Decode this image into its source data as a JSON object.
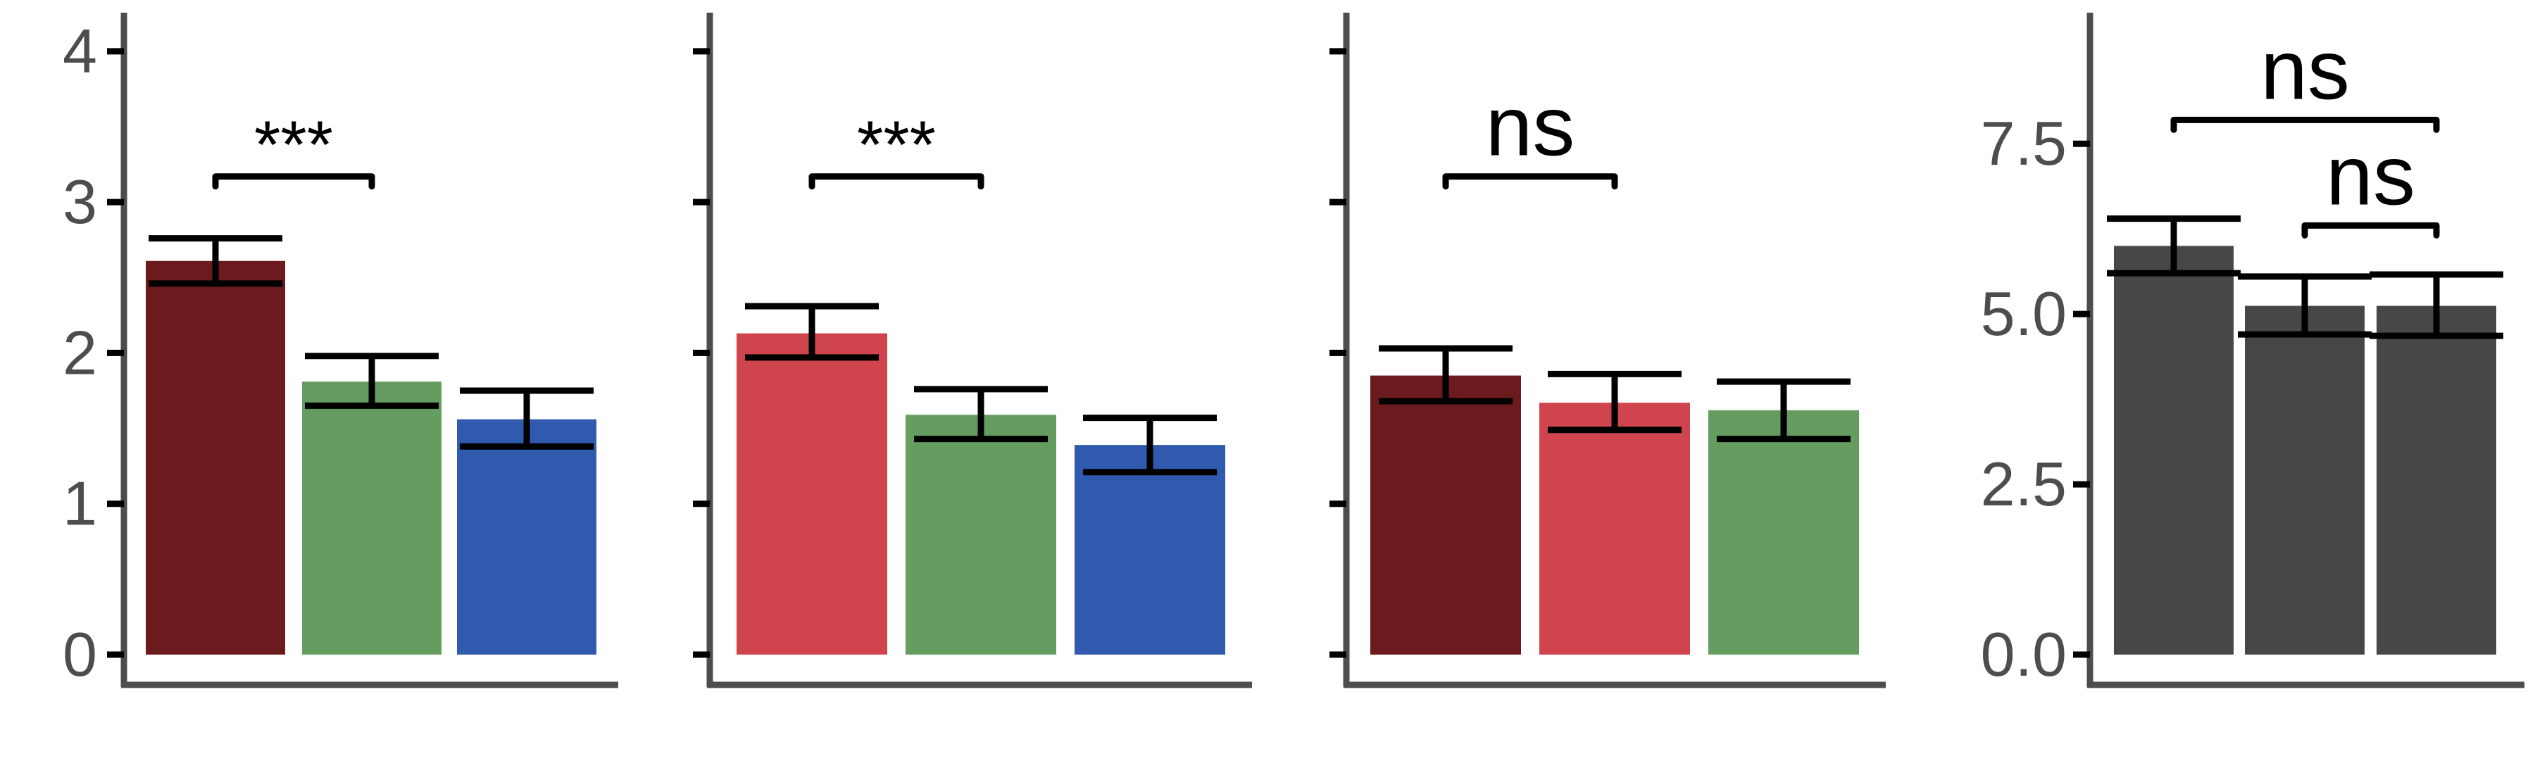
{
  "colors": {
    "dark_red": "#6b1a1d",
    "red": "#cf444d",
    "green": "#659c5f",
    "blue": "#2f5aad",
    "gray": "#474747",
    "axis": "#4d4d4d",
    "tick_text": "#4d4d4d",
    "annotation": "#000000"
  },
  "chart_data": [
    {
      "type": "bar",
      "ylim": [
        0,
        4.2
      ],
      "yticks": [
        "0",
        "1",
        "2",
        "3",
        "4"
      ],
      "ytick_values": [
        0,
        1,
        2,
        3,
        4
      ],
      "show_tick_labels": true,
      "bars": [
        {
          "value": 2.61,
          "err_low": 2.46,
          "err_high": 2.76,
          "color": "#6b1a1d"
        },
        {
          "value": 1.81,
          "err_low": 1.65,
          "err_high": 1.98,
          "color": "#659c5f"
        },
        {
          "value": 1.56,
          "err_low": 1.38,
          "err_high": 1.75,
          "color": "#2f5aad"
        }
      ],
      "annotations": [
        {
          "text": "***",
          "from": 0,
          "to": 1,
          "y": 3.17
        }
      ]
    },
    {
      "type": "bar",
      "ylim": [
        0,
        4.2
      ],
      "yticks": [
        "",
        "",
        "",
        "",
        ""
      ],
      "ytick_values": [
        0,
        1,
        2,
        3,
        4
      ],
      "show_tick_labels": false,
      "bars": [
        {
          "value": 2.13,
          "err_low": 1.97,
          "err_high": 2.31,
          "color": "#cf444d"
        },
        {
          "value": 1.59,
          "err_low": 1.43,
          "err_high": 1.76,
          "color": "#659c5f"
        },
        {
          "value": 1.39,
          "err_low": 1.21,
          "err_high": 1.57,
          "color": "#2f5aad"
        }
      ],
      "annotations": [
        {
          "text": "***",
          "from": 0,
          "to": 1,
          "y": 3.17
        }
      ]
    },
    {
      "type": "bar",
      "ylim": [
        0,
        4.2
      ],
      "yticks": [
        "",
        "",
        "",
        "",
        ""
      ],
      "ytick_values": [
        0,
        1,
        2,
        3,
        4
      ],
      "show_tick_labels": false,
      "bars": [
        {
          "value": 1.85,
          "err_low": 1.68,
          "err_high": 2.03,
          "color": "#6b1a1d"
        },
        {
          "value": 1.67,
          "err_low": 1.49,
          "err_high": 1.86,
          "color": "#cf444d"
        },
        {
          "value": 1.62,
          "err_low": 1.43,
          "err_high": 1.81,
          "color": "#659c5f"
        }
      ],
      "annotations": [
        {
          "text": "ns",
          "from": 0,
          "to": 1,
          "y": 3.17
        }
      ]
    },
    {
      "type": "bar",
      "ylim": [
        0,
        9.3
      ],
      "yticks": [
        "0.0",
        "2.5",
        "5.0",
        "7.5"
      ],
      "ytick_values": [
        0,
        2.5,
        5,
        7.5
      ],
      "show_tick_labels": true,
      "bars": [
        {
          "value": 6.0,
          "err_low": 5.6,
          "err_high": 6.4,
          "color": "#474747"
        },
        {
          "value": 5.12,
          "err_low": 4.7,
          "err_high": 5.55,
          "color": "#474747"
        },
        {
          "value": 5.12,
          "err_low": 4.68,
          "err_high": 5.58,
          "color": "#474747"
        }
      ],
      "annotations": [
        {
          "text": "ns",
          "from": 0,
          "to": 2,
          "y": 7.85
        },
        {
          "text": "ns",
          "from": 1,
          "to": 2,
          "y": 6.3
        }
      ]
    }
  ]
}
